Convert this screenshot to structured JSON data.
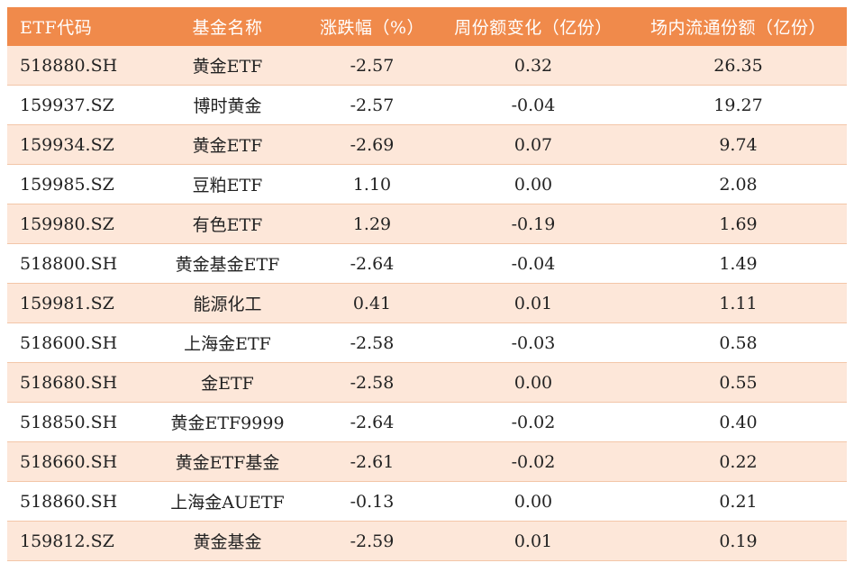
{
  "headers": [
    "ETF代码",
    "基金名称",
    "涨跌幅（%）",
    "周份额变化（亿份）",
    "场内流通份额（亿份）"
  ],
  "rows": [
    {
      "code": "518880.SH",
      "name": "黄金ETF",
      "change": "-2.57",
      "weekly": "0.32",
      "shares": "26.35"
    },
    {
      "code": "159937.SZ",
      "name": "博时黄金",
      "change": "-2.57",
      "weekly": "-0.04",
      "shares": "19.27"
    },
    {
      "code": "159934.SZ",
      "name": "黄金ETF",
      "change": "-2.69",
      "weekly": "0.07",
      "shares": "9.74"
    },
    {
      "code": "159985.SZ",
      "name": "豆粕ETF",
      "change": "1.10",
      "weekly": "0.00",
      "shares": "2.08"
    },
    {
      "code": "159980.SZ",
      "name": "有色ETF",
      "change": "1.29",
      "weekly": "-0.19",
      "shares": "1.69"
    },
    {
      "code": "518800.SH",
      "name": "黄金基金ETF",
      "change": "-2.64",
      "weekly": "-0.04",
      "shares": "1.49"
    },
    {
      "code": "159981.SZ",
      "name": "能源化工",
      "change": "0.41",
      "weekly": "0.01",
      "shares": "1.11"
    },
    {
      "code": "518600.SH",
      "name": "上海金ETF",
      "change": "-2.58",
      "weekly": "-0.03",
      "shares": "0.58"
    },
    {
      "code": "518680.SH",
      "name": "金ETF",
      "change": "-2.58",
      "weekly": "0.00",
      "shares": "0.55"
    },
    {
      "code": "518850.SH",
      "name": "黄金ETF9999",
      "change": "-2.64",
      "weekly": "-0.02",
      "shares": "0.40"
    },
    {
      "code": "518660.SH",
      "name": "黄金ETF基金",
      "change": "-2.61",
      "weekly": "-0.02",
      "shares": "0.22"
    },
    {
      "code": "518860.SH",
      "name": "上海金AUETF",
      "change": "-0.13",
      "weekly": "0.00",
      "shares": "0.21"
    },
    {
      "code": "159812.SZ",
      "name": "黄金基金",
      "change": "-2.59",
      "weekly": "0.01",
      "shares": "0.19"
    }
  ],
  "colors": {
    "header_bg": "#f08a4b",
    "header_text": "#ffffff",
    "stripe": "#fde7d9",
    "divider": "#f3c6a8"
  }
}
